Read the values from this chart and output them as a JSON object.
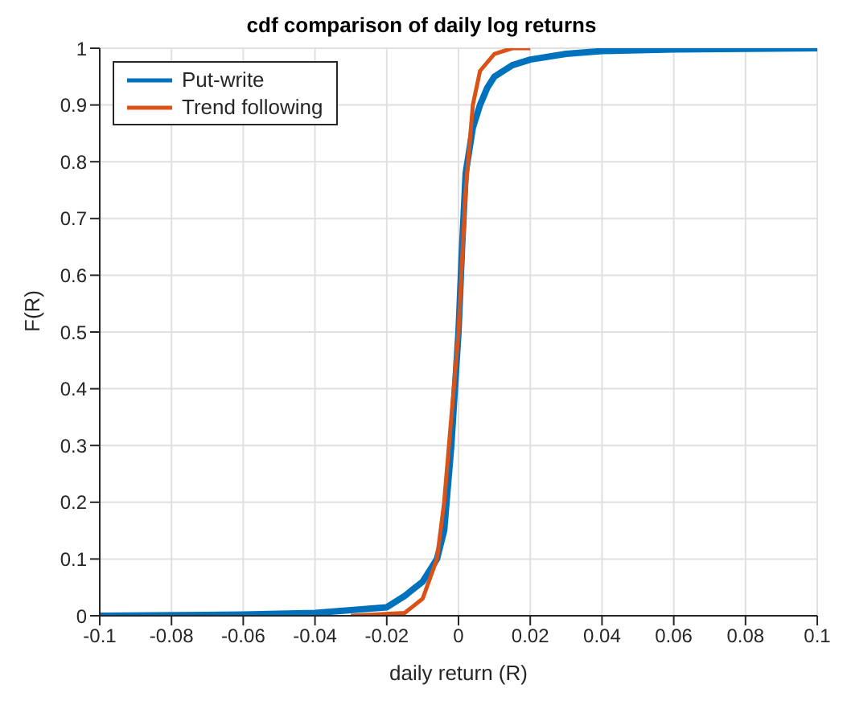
{
  "chart_data": {
    "type": "line",
    "title": "cdf comparison of daily log returns",
    "xlabel": "daily return (R)",
    "ylabel": "F(R)",
    "xlim": [
      -0.1,
      0.1
    ],
    "xticks": [
      -0.1,
      -0.08,
      -0.06,
      -0.04,
      -0.02,
      0,
      0.02,
      0.04,
      0.06,
      0.08,
      0.1
    ],
    "ylim": [
      0,
      1
    ],
    "yticks": [
      0,
      0.1,
      0.2,
      0.3,
      0.4,
      0.5,
      0.6,
      0.7,
      0.8,
      0.9,
      1
    ],
    "grid": true,
    "legend": "top left",
    "line_style": "solid",
    "marker": "none",
    "series": [
      {
        "name": "Put-write",
        "color": "#0072bd",
        "x": [
          -0.1,
          -0.06,
          -0.04,
          -0.03,
          -0.02,
          -0.015,
          -0.01,
          -0.006,
          -0.004,
          -0.002,
          -0.001,
          0,
          0.001,
          0.002,
          0.004,
          0.006,
          0.008,
          0.01,
          0.015,
          0.02,
          0.03,
          0.04,
          0.06,
          0.1
        ],
        "values": [
          0,
          0.002,
          0.005,
          0.01,
          0.015,
          0.035,
          0.06,
          0.1,
          0.15,
          0.3,
          0.4,
          0.5,
          0.65,
          0.78,
          0.86,
          0.9,
          0.93,
          0.95,
          0.97,
          0.98,
          0.99,
          0.995,
          0.998,
          1
        ]
      },
      {
        "name": "Trend following",
        "color": "#d95319",
        "x": [
          -0.03,
          -0.015,
          -0.01,
          -0.006,
          -0.004,
          -0.002,
          0,
          0.002,
          0.004,
          0.006,
          0.01,
          0.015,
          0.02
        ],
        "values": [
          0,
          0.005,
          0.03,
          0.1,
          0.2,
          0.35,
          0.5,
          0.75,
          0.9,
          0.96,
          0.99,
          1,
          1
        ]
      }
    ]
  }
}
